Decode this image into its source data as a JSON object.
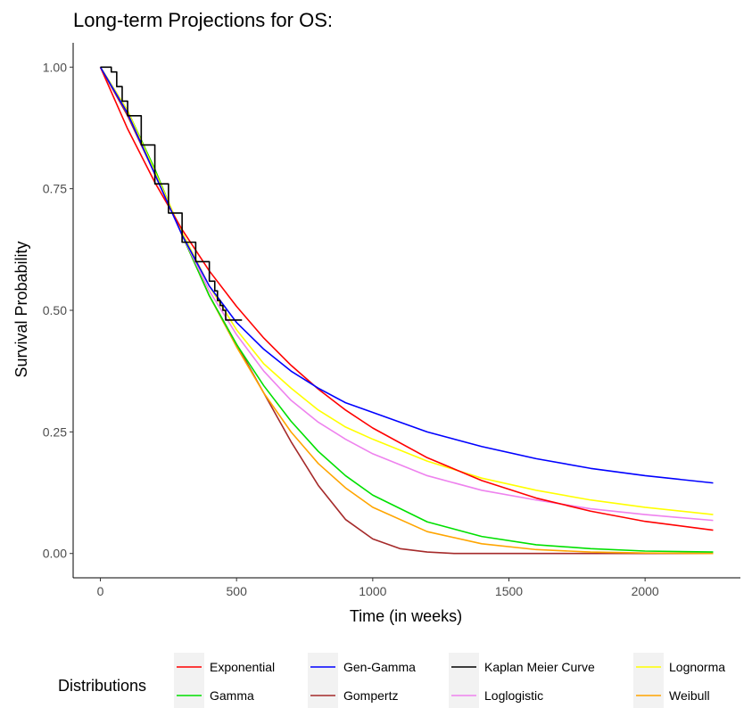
{
  "chart_data": {
    "type": "line",
    "title": "Long-term Projections for OS:",
    "xlabel": "Time (in weeks)",
    "ylabel": "Survival Probability",
    "xlim": [
      -100,
      2350
    ],
    "ylim": [
      -0.05,
      1.05
    ],
    "x_ticks": [
      0,
      500,
      1000,
      1500,
      2000
    ],
    "y_ticks": [
      0.0,
      0.25,
      0.5,
      0.75,
      1.0
    ],
    "y_tick_labels": [
      "0.00",
      "0.25",
      "0.50",
      "0.75",
      "1.00"
    ],
    "grid": false,
    "legend": {
      "title": "Distributions",
      "position": "bottom"
    },
    "series": [
      {
        "name": "Exponential",
        "color": "#ff0000",
        "x": [
          0,
          100,
          200,
          300,
          400,
          500,
          600,
          700,
          800,
          900,
          1000,
          1200,
          1400,
          1600,
          1800,
          2000,
          2250
        ],
        "y": [
          1.0,
          0.873,
          0.763,
          0.666,
          0.581,
          0.508,
          0.443,
          0.387,
          0.338,
          0.295,
          0.258,
          0.197,
          0.15,
          0.114,
          0.087,
          0.066,
          0.048
        ]
      },
      {
        "name": "Gamma",
        "color": "#00e000",
        "x": [
          0,
          100,
          200,
          300,
          400,
          500,
          600,
          700,
          800,
          900,
          1000,
          1200,
          1400,
          1600,
          1800,
          2000,
          2250
        ],
        "y": [
          1.0,
          0.91,
          0.79,
          0.655,
          0.53,
          0.43,
          0.345,
          0.272,
          0.21,
          0.16,
          0.12,
          0.065,
          0.035,
          0.018,
          0.01,
          0.005,
          0.003
        ]
      },
      {
        "name": "Gen-Gamma",
        "color": "#0000ff",
        "x": [
          0,
          100,
          200,
          300,
          400,
          500,
          600,
          700,
          800,
          900,
          1000,
          1200,
          1400,
          1600,
          1800,
          2000,
          2250
        ],
        "y": [
          1.0,
          0.905,
          0.78,
          0.655,
          0.55,
          0.475,
          0.42,
          0.375,
          0.34,
          0.31,
          0.29,
          0.25,
          0.22,
          0.195,
          0.175,
          0.16,
          0.145
        ]
      },
      {
        "name": "Gompertz",
        "color": "#a52a2a",
        "x": [
          0,
          100,
          200,
          300,
          400,
          500,
          600,
          700,
          800,
          900,
          1000,
          1100,
          1200,
          1300,
          1400,
          1600,
          1800,
          2000,
          2250
        ],
        "y": [
          1.0,
          0.9,
          0.78,
          0.655,
          0.53,
          0.43,
          0.33,
          0.23,
          0.14,
          0.07,
          0.03,
          0.01,
          0.003,
          0.0,
          0.0,
          0.0,
          0.0,
          0.0,
          0.0
        ]
      },
      {
        "name": "Kaplan Meier Curve",
        "color": "#000000",
        "x": [
          0,
          20,
          40,
          60,
          80,
          100,
          150,
          200,
          250,
          300,
          350,
          400,
          420,
          430,
          440,
          450,
          460,
          470,
          480,
          500,
          510,
          520
        ],
        "y": [
          1.0,
          1.0,
          0.99,
          0.96,
          0.93,
          0.9,
          0.84,
          0.76,
          0.7,
          0.64,
          0.6,
          0.56,
          0.54,
          0.52,
          0.51,
          0.5,
          0.48,
          0.48,
          0.48,
          0.48,
          0.48,
          0.48
        ]
      },
      {
        "name": "Loglogistic",
        "color": "#ee82ee",
        "x": [
          0,
          100,
          200,
          300,
          400,
          500,
          600,
          700,
          800,
          900,
          1000,
          1200,
          1400,
          1600,
          1800,
          2000,
          2250
        ],
        "y": [
          1.0,
          0.905,
          0.78,
          0.655,
          0.54,
          0.45,
          0.375,
          0.315,
          0.27,
          0.235,
          0.205,
          0.16,
          0.13,
          0.11,
          0.092,
          0.08,
          0.068
        ]
      },
      {
        "name": "Lognorma",
        "color": "#ffff00",
        "x": [
          0,
          100,
          200,
          300,
          400,
          500,
          600,
          700,
          800,
          900,
          1000,
          1200,
          1400,
          1600,
          1800,
          2000,
          2250
        ],
        "y": [
          1.0,
          0.91,
          0.785,
          0.66,
          0.55,
          0.46,
          0.39,
          0.34,
          0.295,
          0.26,
          0.235,
          0.19,
          0.155,
          0.13,
          0.11,
          0.095,
          0.08
        ]
      },
      {
        "name": "Weibull",
        "color": "#ffa500",
        "x": [
          0,
          100,
          200,
          300,
          400,
          500,
          600,
          700,
          800,
          900,
          1000,
          1200,
          1400,
          1600,
          1800,
          2000,
          2250
        ],
        "y": [
          1.0,
          0.91,
          0.79,
          0.655,
          0.53,
          0.425,
          0.33,
          0.25,
          0.185,
          0.135,
          0.095,
          0.045,
          0.02,
          0.008,
          0.003,
          0.001,
          0.0
        ]
      }
    ]
  }
}
